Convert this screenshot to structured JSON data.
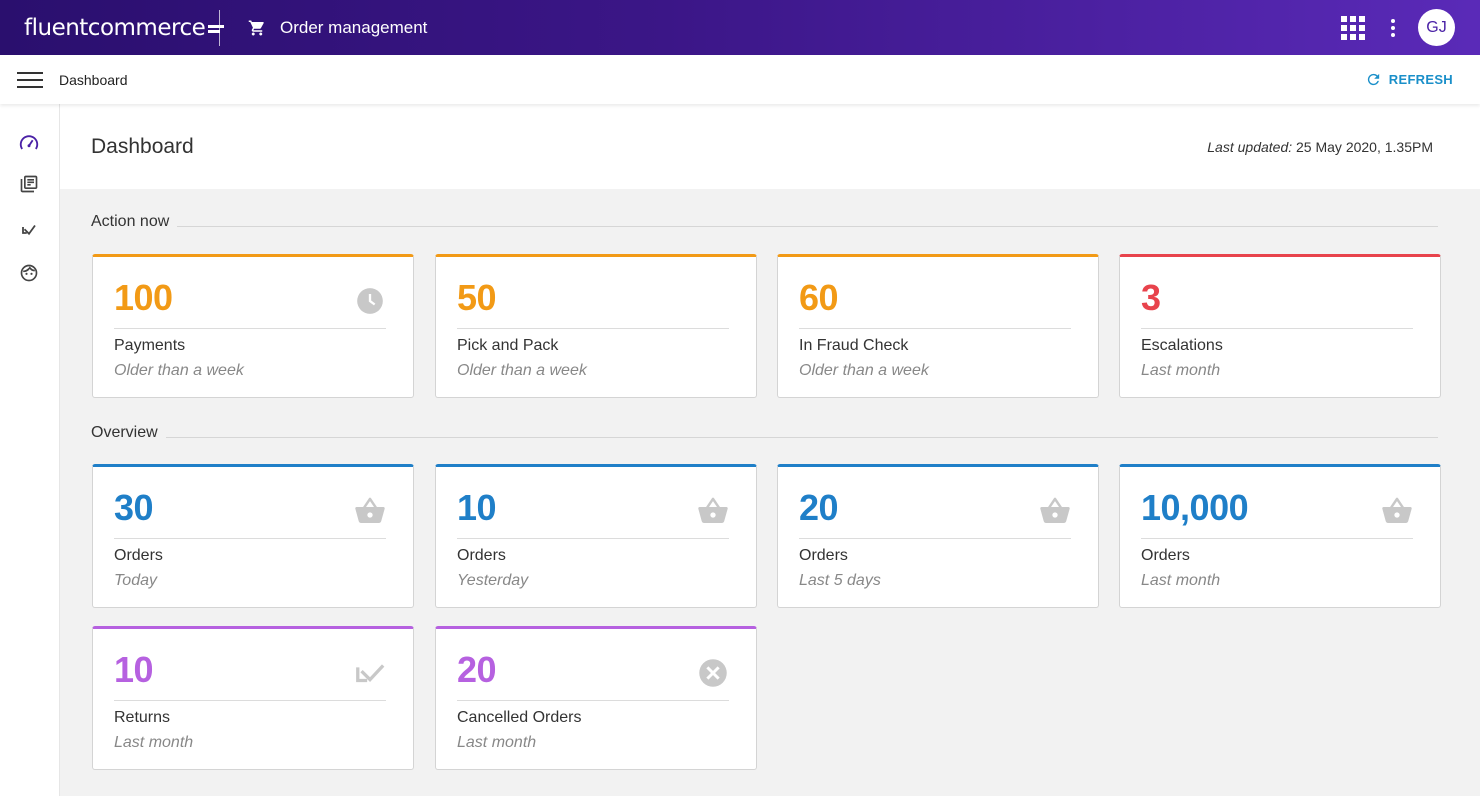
{
  "header": {
    "brand": "fluentcommerce",
    "app_title": "Order management",
    "avatar_initials": "GJ",
    "icons": [
      "cart-icon",
      "apps-grid-icon",
      "more-vert-icon"
    ]
  },
  "subheader": {
    "breadcrumb": "Dashboard",
    "refresh_label": "REFRESH",
    "accent_color": "#1a8fc9"
  },
  "sidebar": {
    "items": [
      {
        "icon": "speedometer-icon",
        "name": "dashboard"
      },
      {
        "icon": "library-books-icon",
        "name": "orders"
      },
      {
        "icon": "call-received-icon",
        "name": "returns"
      },
      {
        "icon": "face-icon",
        "name": "customers"
      }
    ]
  },
  "page": {
    "title": "Dashboard",
    "last_updated_label": "Last updated:",
    "last_updated_value": "25 May 2020, 1.35PM"
  },
  "sections": {
    "action_now": "Action now",
    "overview": "Overview"
  },
  "colors": {
    "orange": "#f29a16",
    "red": "#e8434c",
    "blue": "#1f7fc8",
    "purple": "#b661e0"
  },
  "action_cards": [
    {
      "value": "100",
      "label": "Payments",
      "sub": "Older than a week",
      "color": "orange",
      "icon": "clock-icon"
    },
    {
      "value": "50",
      "label": "Pick and Pack",
      "sub": "Older than a week",
      "color": "orange",
      "icon": ""
    },
    {
      "value": "60",
      "label": "In Fraud Check",
      "sub": "Older than a week",
      "color": "orange",
      "icon": ""
    },
    {
      "value": "3",
      "label": "Escalations",
      "sub": "Last month",
      "color": "red",
      "icon": ""
    }
  ],
  "overview_cards": [
    {
      "value": "30",
      "label": "Orders",
      "sub": "Today",
      "color": "blue",
      "icon": "basket-icon"
    },
    {
      "value": "10",
      "label": "Orders",
      "sub": "Yesterday",
      "color": "blue",
      "icon": "basket-icon"
    },
    {
      "value": "20",
      "label": "Orders",
      "sub": "Last 5 days",
      "color": "blue",
      "icon": "basket-icon"
    },
    {
      "value": "10,000",
      "label": "Orders",
      "sub": "Last month",
      "color": "blue",
      "icon": "basket-icon"
    },
    {
      "value": "10",
      "label": "Returns",
      "sub": "Last month",
      "color": "purple",
      "icon": "return-arrow-icon"
    },
    {
      "value": "20",
      "label": "Cancelled Orders",
      "sub": "Last month",
      "color": "purple",
      "icon": "cancel-circle-icon"
    }
  ]
}
